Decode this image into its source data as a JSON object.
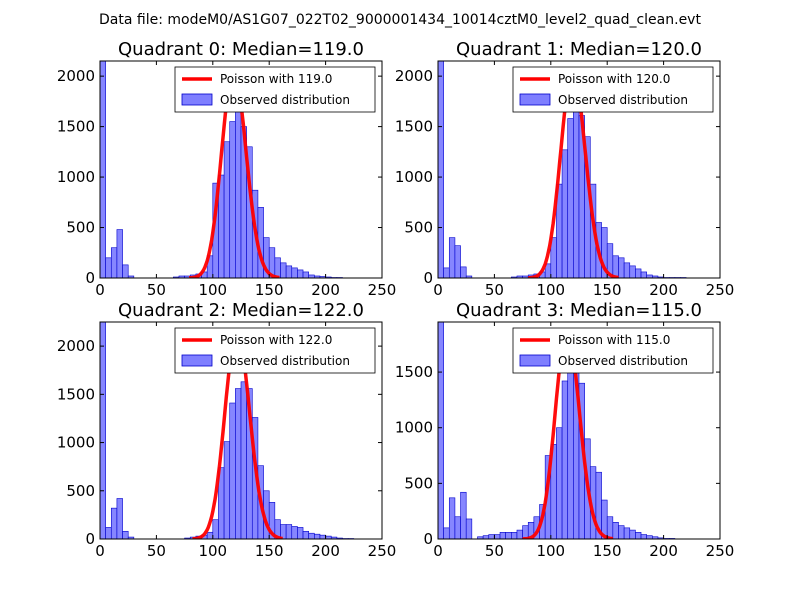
{
  "figure_title": "Data file: modeM0/AS1G07_022T02_9000001434_10014cztM0_level2_quad_clean.evt",
  "colors": {
    "poisson": "#ff0000",
    "bars_fill": "#7f7fff",
    "bars_edge": "#0000cc"
  },
  "chart_data": [
    {
      "type": "bar",
      "title": "Quadrant 0: Median=119.0",
      "legend": [
        "Poisson with 119.0",
        "Observed distribution"
      ],
      "legend_position": "top-right",
      "xlim": [
        0,
        250
      ],
      "ylim": [
        0,
        2150
      ],
      "xticks": [
        0,
        50,
        100,
        150,
        200,
        250
      ],
      "yticks": [
        0,
        500,
        1000,
        1500,
        2000
      ],
      "bin_width": 5,
      "bins_x": [
        0,
        5,
        10,
        15,
        20,
        25,
        65,
        70,
        75,
        80,
        85,
        90,
        95,
        100,
        105,
        110,
        115,
        120,
        125,
        130,
        135,
        140,
        145,
        150,
        155,
        160,
        165,
        170,
        175,
        180,
        185,
        190,
        195,
        200,
        205,
        210
      ],
      "bins_y": [
        2150,
        200,
        300,
        480,
        130,
        20,
        10,
        20,
        20,
        30,
        40,
        60,
        220,
        940,
        1020,
        1350,
        1550,
        1700,
        1500,
        1300,
        870,
        700,
        400,
        300,
        200,
        150,
        120,
        100,
        80,
        60,
        30,
        20,
        15,
        10,
        5,
        5
      ],
      "poisson_mean": 119.0,
      "poisson_peak": 2050
    },
    {
      "type": "bar",
      "title": "Quadrant 1: Median=120.0",
      "legend": [
        "Poisson with 120.0",
        "Observed distribution"
      ],
      "legend_position": "top-right",
      "xlim": [
        0,
        250
      ],
      "ylim": [
        0,
        2150
      ],
      "xticks": [
        0,
        50,
        100,
        150,
        200,
        250
      ],
      "yticks": [
        0,
        500,
        1000,
        1500,
        2000
      ],
      "bin_width": 5,
      "bins_x": [
        0,
        5,
        10,
        15,
        20,
        25,
        65,
        70,
        75,
        80,
        85,
        90,
        95,
        100,
        105,
        110,
        115,
        120,
        125,
        130,
        135,
        140,
        145,
        150,
        155,
        160,
        165,
        170,
        175,
        180,
        185,
        190,
        195,
        200,
        205,
        210,
        215
      ],
      "bins_y": [
        2150,
        100,
        400,
        320,
        110,
        20,
        10,
        20,
        20,
        30,
        40,
        60,
        140,
        400,
        930,
        1270,
        1580,
        1850,
        1610,
        1400,
        930,
        550,
        500,
        340,
        220,
        200,
        150,
        120,
        90,
        60,
        30,
        20,
        10,
        5,
        5,
        5,
        5
      ],
      "poisson_mean": 120.0,
      "poisson_peak": 2050
    },
    {
      "type": "bar",
      "title": "Quadrant 2: Median=122.0",
      "legend": [
        "Poisson with 122.0",
        "Observed distribution"
      ],
      "legend_position": "top-right",
      "xlim": [
        0,
        250
      ],
      "ylim": [
        0,
        2250
      ],
      "xticks": [
        0,
        50,
        100,
        150,
        200,
        250
      ],
      "yticks": [
        0,
        500,
        1000,
        1500,
        2000
      ],
      "bin_width": 5,
      "bins_x": [
        0,
        5,
        10,
        15,
        20,
        25,
        75,
        80,
        85,
        90,
        95,
        100,
        105,
        110,
        115,
        120,
        125,
        130,
        135,
        140,
        145,
        150,
        155,
        160,
        165,
        170,
        175,
        180,
        185,
        190,
        195,
        200,
        205,
        210,
        215,
        220
      ],
      "bins_y": [
        2250,
        120,
        320,
        420,
        80,
        20,
        10,
        20,
        30,
        40,
        70,
        200,
        740,
        1010,
        1410,
        1560,
        1630,
        1560,
        1260,
        760,
        500,
        380,
        200,
        150,
        150,
        130,
        120,
        80,
        60,
        50,
        40,
        30,
        20,
        10,
        5,
        5
      ],
      "poisson_mean": 122.0,
      "poisson_peak": 2150
    },
    {
      "type": "bar",
      "title": "Quadrant 3: Median=115.0",
      "legend": [
        "Poisson with 115.0",
        "Observed distribution"
      ],
      "legend_position": "top-right",
      "xlim": [
        0,
        250
      ],
      "ylim": [
        0,
        1950
      ],
      "xticks": [
        0,
        50,
        100,
        150,
        200,
        250
      ],
      "yticks": [
        0,
        500,
        1000,
        1500
      ],
      "bin_width": 5,
      "bins_x": [
        0,
        5,
        10,
        15,
        20,
        25,
        35,
        40,
        45,
        50,
        55,
        60,
        65,
        70,
        75,
        80,
        85,
        90,
        95,
        100,
        105,
        110,
        115,
        120,
        125,
        130,
        135,
        140,
        145,
        150,
        155,
        160,
        165,
        170,
        175,
        180,
        185,
        190,
        195,
        200,
        205
      ],
      "bins_y": [
        1950,
        100,
        370,
        200,
        420,
        180,
        20,
        30,
        40,
        40,
        60,
        60,
        60,
        80,
        120,
        150,
        200,
        310,
        750,
        850,
        1000,
        1420,
        1620,
        1620,
        1400,
        900,
        650,
        600,
        350,
        200,
        150,
        120,
        100,
        80,
        60,
        40,
        30,
        20,
        10,
        5,
        5
      ],
      "poisson_mean": 115.0,
      "poisson_peak": 1880
    }
  ]
}
